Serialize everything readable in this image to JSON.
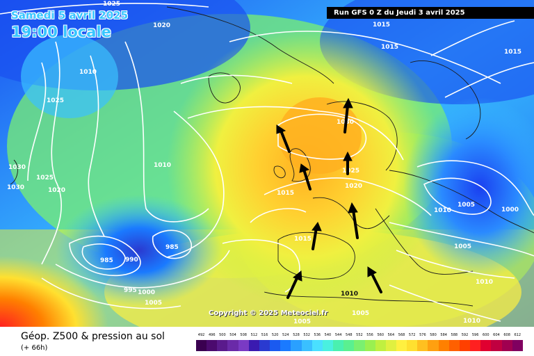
{
  "header": {
    "date": "Samedi 5 avril 2025",
    "time": "19:00 locale",
    "run": "Run GFS 0 Z du Jeudi 3 avril 2025"
  },
  "copyright": "Copyright © 2025 Meteociel.fr",
  "legend": {
    "title": "Géop. Z500 & pression au sol",
    "subtitle": "(+ 66h)",
    "scale_values": [
      "492",
      "496",
      "500",
      "504",
      "508",
      "512",
      "516",
      "520",
      "524",
      "528",
      "532",
      "536",
      "540",
      "544",
      "548",
      "552",
      "556",
      "560",
      "564",
      "568",
      "572",
      "576",
      "580",
      "584",
      "588",
      "592",
      "596",
      "600",
      "604",
      "608",
      "612"
    ],
    "scale_colors": [
      "#3a0050",
      "#4b0a6e",
      "#5a1a8c",
      "#6a2aa8",
      "#7a3ac4",
      "#3a1ab0",
      "#2a3ad0",
      "#1a5af0",
      "#1a7aff",
      "#2aa0ff",
      "#3ac0ff",
      "#4ae0ff",
      "#4af0e0",
      "#4af0b0",
      "#5af090",
      "#7af070",
      "#9af050",
      "#c0f040",
      "#e0f040",
      "#fff040",
      "#ffe030",
      "#ffc020",
      "#ffa010",
      "#ff8000",
      "#ff6000",
      "#ff4000",
      "#ff2020",
      "#e00030",
      "#c00040",
      "#a00050",
      "#800060"
    ]
  },
  "pressure_labels": [
    "1025",
    "1015",
    "1015",
    "1015",
    "1020",
    "1010",
    "1025",
    "1030",
    "1025",
    "1030",
    "1020",
    "1010",
    "1030",
    "1025",
    "1020",
    "1015",
    "1010",
    "1005",
    "1000",
    "1015",
    "1005",
    "985",
    "985",
    "990",
    "995",
    "1000",
    "1005",
    "1010",
    "1005",
    "1010",
    "1005",
    "1010"
  ],
  "colors": {
    "cold": "#1a3aff",
    "warm": "#ffc020",
    "isobar": "#ffffff",
    "arrow": "#000000"
  }
}
